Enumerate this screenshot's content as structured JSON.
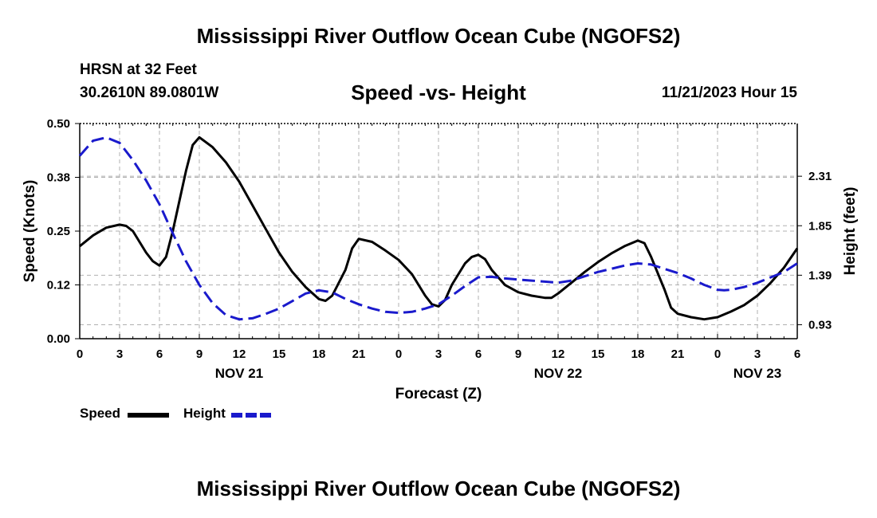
{
  "page": {
    "title": "Mississippi River Outflow Ocean Cube (NGOFS2)",
    "footer_title": "Mississippi River Outflow Ocean Cube (NGOFS2)"
  },
  "info": {
    "station": "HRSN at 32 Feet",
    "coords": "30.2610N  89.0801W",
    "subtitle": "Speed -vs- Height",
    "datetime": "11/21/2023 Hour 15"
  },
  "colors": {
    "speed": "#000000",
    "height": "#1a1acc",
    "grid": "#b0b0b0"
  },
  "chart_data": {
    "type": "line",
    "title": "Speed -vs- Height",
    "xlabel": "Forecast (Z)",
    "ylabel": "Speed (Knots)",
    "y2label": "Height (feet)",
    "x_hours_range": [
      0,
      54
    ],
    "ylim": [
      0,
      0.5
    ],
    "y2lim": [
      0.8,
      2.8
    ],
    "x_ticks": [
      {
        "h": 0,
        "label": "0"
      },
      {
        "h": 3,
        "label": "3"
      },
      {
        "h": 6,
        "label": "6"
      },
      {
        "h": 9,
        "label": "9"
      },
      {
        "h": 12,
        "label": "12"
      },
      {
        "h": 15,
        "label": "15"
      },
      {
        "h": 18,
        "label": "18"
      },
      {
        "h": 21,
        "label": "21"
      },
      {
        "h": 24,
        "label": "0"
      },
      {
        "h": 27,
        "label": "3"
      },
      {
        "h": 30,
        "label": "6"
      },
      {
        "h": 33,
        "label": "9"
      },
      {
        "h": 36,
        "label": "12"
      },
      {
        "h": 39,
        "label": "15"
      },
      {
        "h": 42,
        "label": "18"
      },
      {
        "h": 45,
        "label": "21"
      },
      {
        "h": 48,
        "label": "0"
      },
      {
        "h": 51,
        "label": "3"
      },
      {
        "h": 54,
        "label": "6"
      }
    ],
    "date_labels": [
      {
        "h": 12,
        "label": "NOV 21"
      },
      {
        "h": 36,
        "label": "NOV 22"
      },
      {
        "h": 51,
        "label": "NOV 23"
      }
    ],
    "y_ticks": [
      {
        "v": 0.0,
        "label": "0.00"
      },
      {
        "v": 0.125,
        "label": "0.12"
      },
      {
        "v": 0.25,
        "label": "0.25"
      },
      {
        "v": 0.375,
        "label": "0.38"
      },
      {
        "v": 0.5,
        "label": "0.50"
      }
    ],
    "y2_ticks": [
      {
        "v": 0.93,
        "label": "0.93"
      },
      {
        "v": 1.39,
        "label": "1.39"
      },
      {
        "v": 1.85,
        "label": "1.85"
      },
      {
        "v": 2.31,
        "label": "2.31"
      }
    ],
    "series": [
      {
        "name": "Speed",
        "axis": "left",
        "style": "solid",
        "points": [
          [
            0,
            0.215
          ],
          [
            1,
            0.24
          ],
          [
            2,
            0.258
          ],
          [
            3,
            0.265
          ],
          [
            3.5,
            0.262
          ],
          [
            4,
            0.25
          ],
          [
            5,
            0.2
          ],
          [
            5.5,
            0.18
          ],
          [
            6,
            0.17
          ],
          [
            6.5,
            0.19
          ],
          [
            7,
            0.25
          ],
          [
            8,
            0.39
          ],
          [
            8.5,
            0.45
          ],
          [
            9,
            0.468
          ],
          [
            10,
            0.445
          ],
          [
            11,
            0.41
          ],
          [
            12,
            0.365
          ],
          [
            13,
            0.31
          ],
          [
            14,
            0.255
          ],
          [
            15,
            0.2
          ],
          [
            16,
            0.155
          ],
          [
            17,
            0.12
          ],
          [
            18,
            0.092
          ],
          [
            18.5,
            0.088
          ],
          [
            19,
            0.1
          ],
          [
            20,
            0.16
          ],
          [
            20.5,
            0.21
          ],
          [
            21,
            0.232
          ],
          [
            22,
            0.225
          ],
          [
            23,
            0.205
          ],
          [
            24,
            0.183
          ],
          [
            25,
            0.15
          ],
          [
            26,
            0.1
          ],
          [
            26.5,
            0.08
          ],
          [
            27,
            0.075
          ],
          [
            27.5,
            0.09
          ],
          [
            28,
            0.125
          ],
          [
            29,
            0.175
          ],
          [
            29.5,
            0.19
          ],
          [
            30,
            0.195
          ],
          [
            30.5,
            0.185
          ],
          [
            31,
            0.16
          ],
          [
            32,
            0.125
          ],
          [
            33,
            0.108
          ],
          [
            34,
            0.1
          ],
          [
            35,
            0.095
          ],
          [
            35.5,
            0.095
          ],
          [
            36,
            0.105
          ],
          [
            37,
            0.13
          ],
          [
            38,
            0.155
          ],
          [
            39,
            0.178
          ],
          [
            40,
            0.198
          ],
          [
            41,
            0.215
          ],
          [
            42,
            0.228
          ],
          [
            42.5,
            0.222
          ],
          [
            43,
            0.19
          ],
          [
            44,
            0.115
          ],
          [
            44.5,
            0.072
          ],
          [
            45,
            0.058
          ],
          [
            46,
            0.05
          ],
          [
            47,
            0.045
          ],
          [
            48,
            0.05
          ],
          [
            49,
            0.063
          ],
          [
            50,
            0.078
          ],
          [
            51,
            0.1
          ],
          [
            52,
            0.13
          ],
          [
            53,
            0.165
          ],
          [
            54,
            0.21
          ]
        ]
      },
      {
        "name": "Height",
        "axis": "right",
        "style": "dashed",
        "points": [
          [
            0,
            2.5
          ],
          [
            1,
            2.64
          ],
          [
            2,
            2.67
          ],
          [
            3,
            2.62
          ],
          [
            4,
            2.46
          ],
          [
            5,
            2.27
          ],
          [
            6,
            2.05
          ],
          [
            7,
            1.78
          ],
          [
            8,
            1.52
          ],
          [
            9,
            1.3
          ],
          [
            10,
            1.13
          ],
          [
            11,
            1.02
          ],
          [
            12,
            0.98
          ],
          [
            13,
            0.99
          ],
          [
            14,
            1.03
          ],
          [
            15,
            1.08
          ],
          [
            16,
            1.15
          ],
          [
            17,
            1.22
          ],
          [
            18,
            1.25
          ],
          [
            19,
            1.23
          ],
          [
            20,
            1.17
          ],
          [
            21,
            1.12
          ],
          [
            22,
            1.08
          ],
          [
            23,
            1.05
          ],
          [
            24,
            1.04
          ],
          [
            25,
            1.05
          ],
          [
            26,
            1.08
          ],
          [
            27,
            1.12
          ],
          [
            28,
            1.2
          ],
          [
            29,
            1.29
          ],
          [
            30,
            1.37
          ],
          [
            31,
            1.375
          ],
          [
            32,
            1.36
          ],
          [
            33,
            1.35
          ],
          [
            34,
            1.34
          ],
          [
            35,
            1.33
          ],
          [
            36,
            1.32
          ],
          [
            37,
            1.34
          ],
          [
            38,
            1.38
          ],
          [
            39,
            1.42
          ],
          [
            40,
            1.45
          ],
          [
            41,
            1.48
          ],
          [
            42,
            1.5
          ],
          [
            43,
            1.49
          ],
          [
            44,
            1.45
          ],
          [
            45,
            1.41
          ],
          [
            46,
            1.36
          ],
          [
            47,
            1.3
          ],
          [
            48,
            1.255
          ],
          [
            48.5,
            1.25
          ],
          [
            49,
            1.255
          ],
          [
            50,
            1.28
          ],
          [
            51,
            1.32
          ],
          [
            52,
            1.37
          ],
          [
            53,
            1.42
          ],
          [
            54,
            1.5
          ]
        ]
      }
    ],
    "legend": [
      {
        "name": "Speed",
        "label": "Speed"
      },
      {
        "name": "Height",
        "label": "Height"
      }
    ]
  }
}
